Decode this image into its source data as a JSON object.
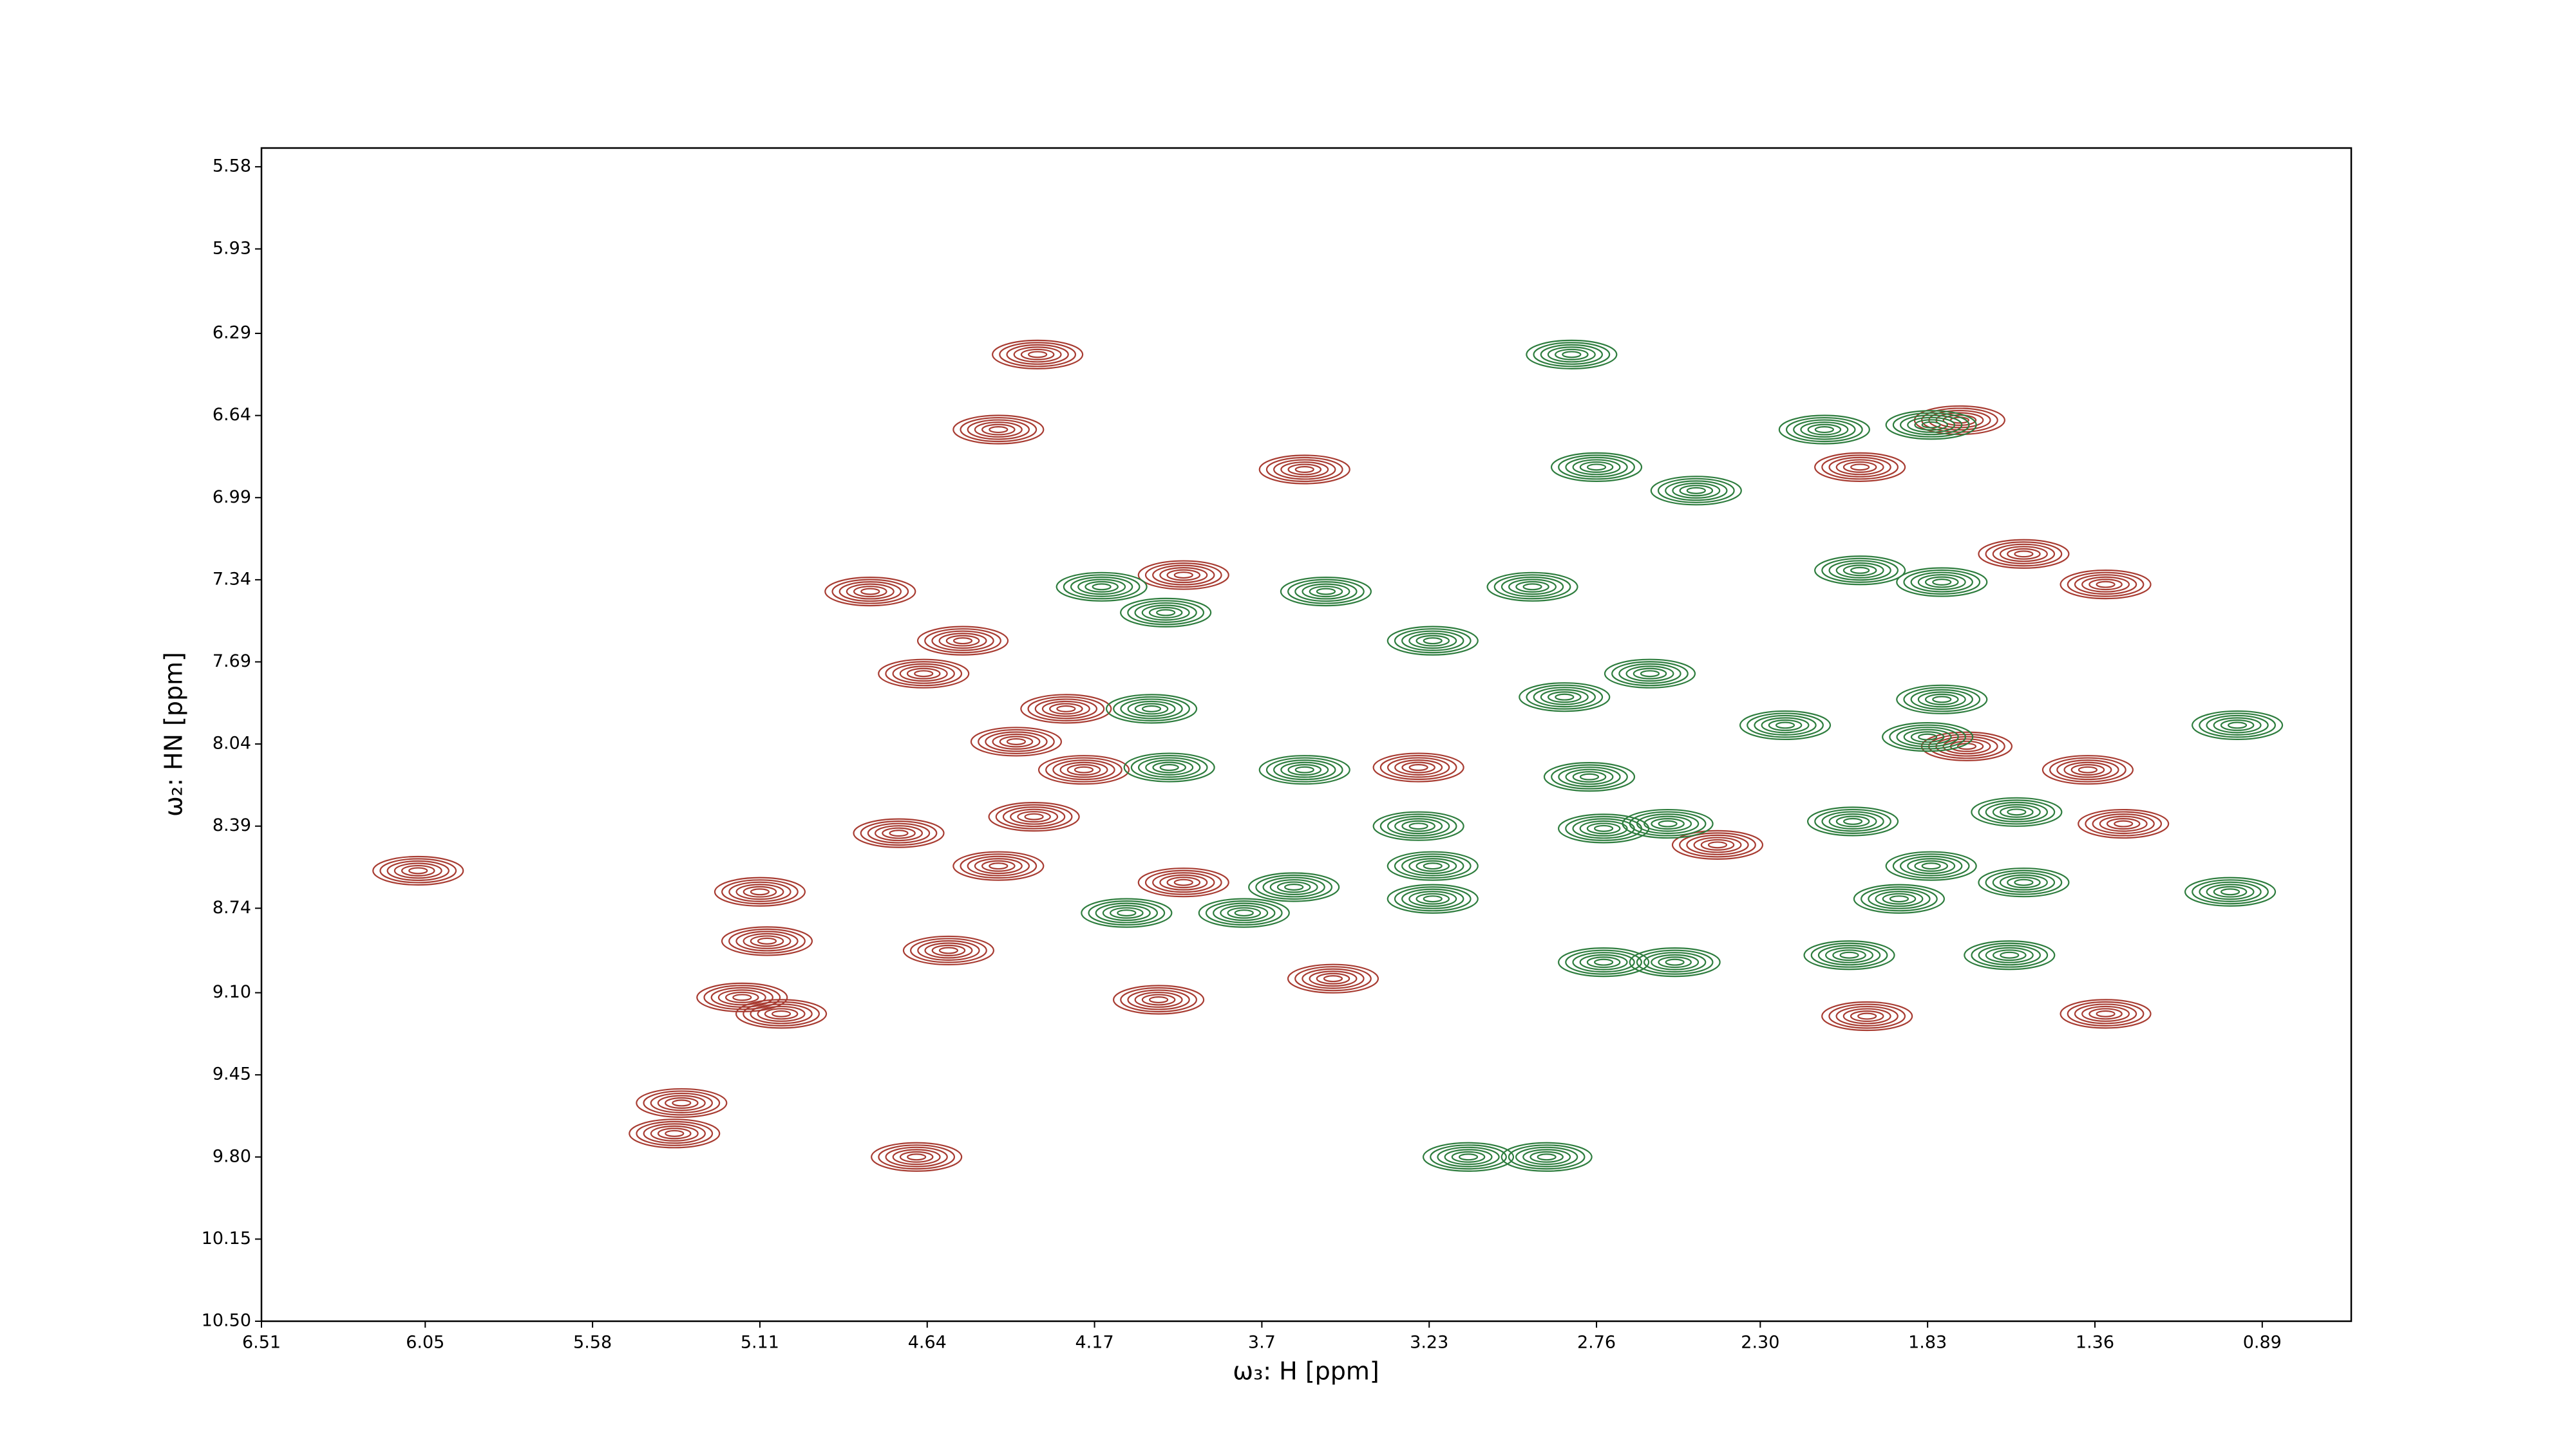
{
  "chart_data": {
    "type": "contour",
    "xlabel": "ω₃: H [ppm]",
    "ylabel": "ω₂: HN [ppm]",
    "xlim": [
      6.51,
      0.64
    ],
    "ylim": [
      10.5,
      5.5
    ],
    "xticks": [
      6.51,
      6.05,
      5.58,
      5.11,
      4.64,
      4.17,
      3.7,
      {
        "value": 3.23,
        "label": "3.23"
      },
      2.76,
      {
        "value": 2.3,
        "label": "2.30"
      },
      1.83,
      1.36,
      0.89
    ],
    "yticks": [
      5.58,
      5.93,
      6.29,
      6.64,
      6.99,
      7.34,
      7.69,
      8.04,
      8.39,
      8.74,
      {
        "value": 9.1,
        "label": "9.10"
      },
      9.45,
      {
        "value": 9.8,
        "label": "9.80"
      },
      10.15,
      {
        "value": 10.5,
        "label": "10.50"
      }
    ],
    "series": [
      {
        "color": "#a83c32",
        "x": [
          4.33,
          4.44,
          3.58,
          4.8,
          4.54,
          4.65,
          3.92,
          4.25,
          4.39,
          4.2,
          4.34,
          4.72,
          4.44,
          5.11,
          5.09,
          4.58,
          6.07,
          5.16,
          5.05,
          5.33,
          5.35,
          4.67,
          3.99,
          3.5,
          1.56,
          1.33,
          1.38,
          1.28,
          2.02,
          1.74,
          2.0,
          1.33,
          1.72,
          3.92,
          3.26,
          2.42
        ],
        "y": [
          6.38,
          6.7,
          6.87,
          7.39,
          7.6,
          7.74,
          7.32,
          7.89,
          8.03,
          8.15,
          8.35,
          8.42,
          8.56,
          8.67,
          8.88,
          8.92,
          8.58,
          9.12,
          9.19,
          9.57,
          9.7,
          9.8,
          9.13,
          9.04,
          7.23,
          7.36,
          8.15,
          8.38,
          6.86,
          6.66,
          9.2,
          9.19,
          8.05,
          8.63,
          8.14,
          8.47
        ]
      },
      {
        "color": "#2e7d3e",
        "x": [
          2.83,
          2.76,
          2.48,
          2.12,
          1.82,
          3.52,
          4.15,
          3.97,
          2.94,
          2.61,
          2.85,
          4.01,
          3.96,
          3.58,
          3.22,
          2.02,
          1.79,
          2.23,
          1.79,
          1.83,
          2.78,
          1.58,
          2.04,
          3.26,
          3.22,
          3.22,
          2.56,
          2.74,
          1.82,
          1.91,
          1.56,
          4.08,
          3.75,
          3.61,
          2.74,
          2.54,
          2.05,
          1.6,
          0.98,
          0.96,
          3.12,
          2.9
        ],
        "y": [
          6.38,
          6.86,
          6.96,
          6.7,
          6.68,
          7.39,
          7.37,
          7.48,
          7.37,
          7.74,
          7.84,
          7.89,
          8.14,
          8.15,
          7.6,
          7.3,
          7.35,
          7.96,
          7.85,
          8.01,
          8.18,
          8.33,
          8.37,
          8.39,
          8.56,
          8.7,
          8.38,
          8.4,
          8.56,
          8.7,
          8.63,
          8.76,
          8.76,
          8.65,
          8.97,
          8.97,
          8.94,
          8.94,
          8.67,
          7.96,
          9.8,
          9.8
        ]
      }
    ]
  }
}
